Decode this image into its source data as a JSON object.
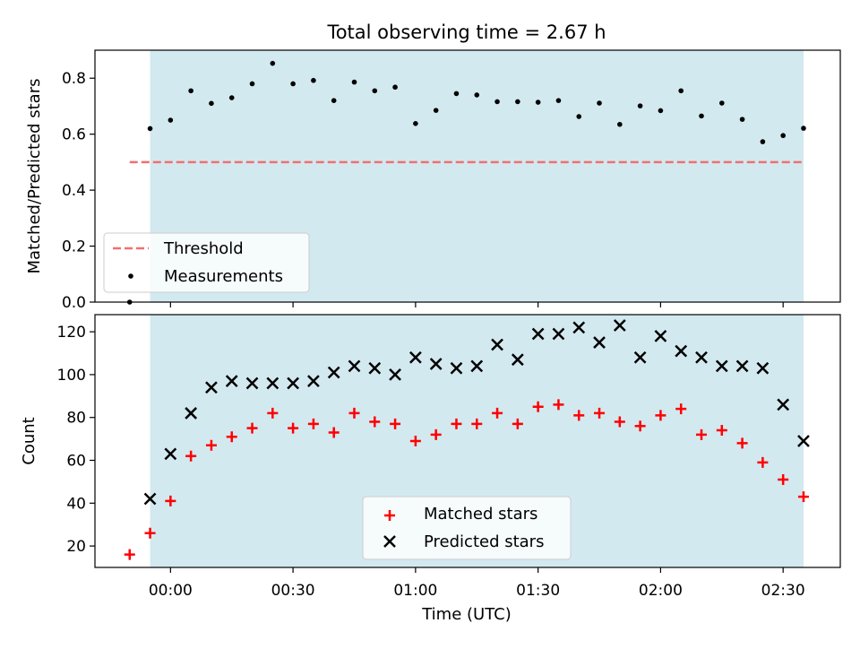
{
  "title": "Total observing time = 2.67 h",
  "xlabel": "Time (UTC)",
  "xticks": [
    "00:00",
    "00:30",
    "01:00",
    "01:30",
    "02:00",
    "02:30"
  ],
  "colors": {
    "band": "#d3e9f0",
    "threshold": "#f07070",
    "matched": "#ff0000",
    "predicted": "#000000",
    "measure": "#000000"
  },
  "chart_data": [
    {
      "type": "scatter",
      "ylabel": "Matched/Predicted stars",
      "xlim_minutes": [
        -18.5,
        164
      ],
      "ylim": [
        0,
        0.9
      ],
      "yticks": [
        0.0,
        0.2,
        0.4,
        0.6,
        0.8
      ],
      "observing_window_minutes": [
        -5,
        155
      ],
      "threshold": {
        "name": "Threshold",
        "value": 0.5,
        "x_range_minutes": [
          -10,
          155
        ]
      },
      "series": [
        {
          "name": "Measurements",
          "x_minutes": [
            -10,
            -5,
            0,
            5,
            10,
            15,
            20,
            25,
            30,
            35,
            40,
            45,
            50,
            55,
            60,
            65,
            70,
            75,
            80,
            85,
            90,
            95,
            100,
            105,
            110,
            115,
            120,
            125,
            130,
            135,
            140,
            145,
            150,
            155
          ],
          "values": [
            0.0,
            0.62,
            0.65,
            0.755,
            0.71,
            0.73,
            0.78,
            0.853,
            0.78,
            0.792,
            0.72,
            0.786,
            0.755,
            0.768,
            0.638,
            0.685,
            0.745,
            0.74,
            0.716,
            0.716,
            0.714,
            0.72,
            0.663,
            0.711,
            0.635,
            0.701,
            0.684,
            0.755,
            0.665,
            0.711,
            0.653,
            0.573,
            0.595,
            0.621
          ]
        }
      ]
    },
    {
      "type": "scatter",
      "ylabel": "Count",
      "xlim_minutes": [
        -18.5,
        164
      ],
      "ylim": [
        10,
        128
      ],
      "yticks": [
        20,
        40,
        60,
        80,
        100,
        120
      ],
      "observing_window_minutes": [
        -5,
        155
      ],
      "series": [
        {
          "name": "Matched stars",
          "x_minutes": [
            -10,
            -5,
            0,
            5,
            10,
            15,
            20,
            25,
            30,
            35,
            40,
            45,
            50,
            55,
            60,
            65,
            70,
            75,
            80,
            85,
            90,
            95,
            100,
            105,
            110,
            115,
            120,
            125,
            130,
            135,
            140,
            145,
            150,
            155
          ],
          "values": [
            16,
            26,
            41,
            62,
            67,
            71,
            75,
            82,
            75,
            77,
            73,
            82,
            78,
            77,
            69,
            72,
            77,
            77,
            82,
            77,
            85,
            86,
            81,
            82,
            78,
            76,
            81,
            84,
            72,
            74,
            68,
            59,
            51,
            43
          ]
        },
        {
          "name": "Predicted stars",
          "x_minutes": [
            -5,
            0,
            5,
            10,
            15,
            20,
            25,
            30,
            35,
            40,
            45,
            50,
            55,
            60,
            65,
            70,
            75,
            80,
            85,
            90,
            95,
            100,
            105,
            110,
            115,
            120,
            125,
            130,
            135,
            140,
            145,
            150,
            155
          ],
          "values": [
            42,
            63,
            82,
            94,
            97,
            96,
            96,
            96,
            97,
            101,
            104,
            103,
            100,
            108,
            105,
            103,
            104,
            114,
            107,
            119,
            119,
            122,
            115,
            123,
            108,
            118,
            111,
            108,
            104,
            104,
            103,
            86,
            69
          ]
        }
      ]
    }
  ]
}
